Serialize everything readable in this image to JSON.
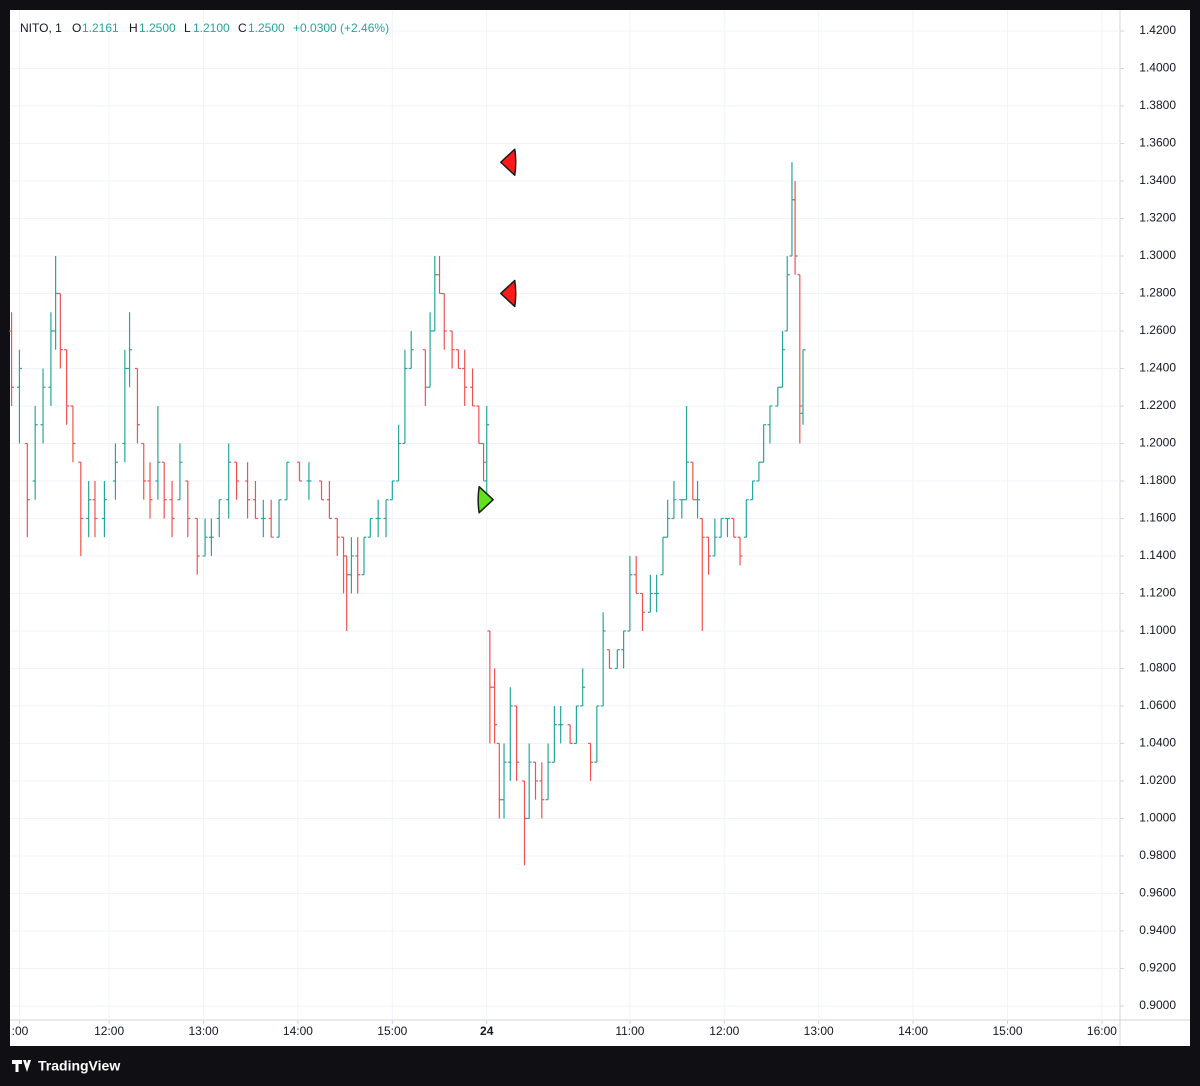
{
  "chart_data": {
    "type": "ohlc",
    "legend": {
      "symbol": "NITO, 1",
      "o_label": "O",
      "o": "1.2161",
      "h_label": "H",
      "h": "1.2500",
      "l_label": "L",
      "l": "1.2100",
      "c_label": "C",
      "c": "1.2500",
      "change": "+0.0300 (+2.46%)"
    },
    "brand": "TradingView",
    "up_color": "#26a69a",
    "down_color": "#ef5350",
    "x": [
      1,
      6,
      11,
      16,
      21,
      26,
      29,
      32,
      36,
      40,
      45,
      50,
      54,
      60,
      67,
      73,
      76,
      81,
      85,
      89,
      94,
      98,
      103,
      108,
      113,
      119,
      124,
      128,
      133,
      139,
      144,
      151,
      156,
      161,
      166,
      171,
      176,
      184,
      190,
      198,
      203,
      208,
      212,
      214,
      217,
      221,
      225,
      229,
      234,
      239,
      243,
      247,
      251,
      255,
      264,
      267,
      270,
      273,
      276,
      281,
      285,
      289,
      294,
      298,
      301,
      303,
      305,
      308,
      311,
      314,
      318,
      322,
      327,
      330,
      334,
      338,
      342,
      346,
      350,
      356,
      360,
      364,
      369,
      373,
      377,
      381,
      386,
      390,
      394,
      398,
      402,
      407,
      411,
      415,
      418,
      422,
      427,
      430,
      434,
      437,
      440,
      444,
      448,
      452,
      456,
      460,
      464,
      468,
      472,
      476,
      479,
      483,
      488,
      491,
      494,
      497,
      499,
      502,
      504
    ],
    "open": [
      1.26,
      1.23,
      1.2,
      1.18,
      1.21,
      1.23,
      1.26,
      1.28,
      1.25,
      1.22,
      1.19,
      1.16,
      1.17,
      1.16,
      1.18,
      1.2,
      1.24,
      1.24,
      1.2,
      1.18,
      1.18,
      1.19,
      1.17,
      1.17,
      1.18,
      1.16,
      1.14,
      1.15,
      1.16,
      1.17,
      1.19,
      1.18,
      1.17,
      1.16,
      1.16,
      1.15,
      1.17,
      1.19,
      1.18,
      1.18,
      1.17,
      1.16,
      1.15,
      1.14,
      1.13,
      1.14,
      1.13,
      1.15,
      1.16,
      1.16,
      1.17,
      1.18,
      1.2,
      1.24,
      1.25,
      1.23,
      1.26,
      1.29,
      1.28,
      1.26,
      1.25,
      1.24,
      1.23,
      1.22,
      1.2,
      1.18,
      1.1,
      1.07,
      1.04,
      1.01,
      1.03,
      1.06,
      1.02,
      1.0,
      1.03,
      1.02,
      1.01,
      1.03,
      1.05,
      1.05,
      1.04,
      1.06,
      1.04,
      1.03,
      1.06,
      1.09,
      1.08,
      1.09,
      1.1,
      1.13,
      1.12,
      1.11,
      1.12,
      1.13,
      1.15,
      1.16,
      1.17,
      1.17,
      1.19,
      1.17,
      1.16,
      1.15,
      1.14,
      1.15,
      1.16,
      1.16,
      1.15,
      1.15,
      1.17,
      1.18,
      1.19,
      1.21,
      1.22,
      1.23,
      1.26,
      1.3,
      1.33,
      1.29,
      1.2161
    ],
    "high": [
      1.27,
      1.25,
      1.2,
      1.22,
      1.24,
      1.27,
      1.3,
      1.28,
      1.25,
      1.22,
      1.19,
      1.18,
      1.18,
      1.18,
      1.2,
      1.25,
      1.27,
      1.24,
      1.2,
      1.19,
      1.22,
      1.19,
      1.18,
      1.2,
      1.18,
      1.16,
      1.16,
      1.16,
      1.17,
      1.2,
      1.19,
      1.19,
      1.18,
      1.17,
      1.17,
      1.17,
      1.19,
      1.19,
      1.19,
      1.18,
      1.18,
      1.16,
      1.15,
      1.14,
      1.15,
      1.15,
      1.15,
      1.16,
      1.17,
      1.17,
      1.18,
      1.21,
      1.25,
      1.26,
      1.25,
      1.27,
      1.3,
      1.3,
      1.28,
      1.26,
      1.25,
      1.25,
      1.24,
      1.22,
      1.2,
      1.22,
      1.1,
      1.08,
      1.04,
      1.04,
      1.07,
      1.06,
      1.02,
      1.04,
      1.03,
      1.03,
      1.04,
      1.06,
      1.06,
      1.05,
      1.06,
      1.08,
      1.04,
      1.06,
      1.11,
      1.09,
      1.09,
      1.1,
      1.14,
      1.14,
      1.12,
      1.13,
      1.13,
      1.15,
      1.17,
      1.18,
      1.17,
      1.22,
      1.19,
      1.18,
      1.16,
      1.15,
      1.16,
      1.16,
      1.16,
      1.16,
      1.15,
      1.17,
      1.18,
      1.19,
      1.21,
      1.22,
      1.23,
      1.26,
      1.3,
      1.35,
      1.34,
      1.29,
      1.25
    ],
    "low": [
      1.22,
      1.2,
      1.15,
      1.17,
      1.2,
      1.22,
      1.25,
      1.24,
      1.21,
      1.19,
      1.14,
      1.15,
      1.15,
      1.15,
      1.17,
      1.19,
      1.23,
      1.2,
      1.17,
      1.16,
      1.17,
      1.16,
      1.15,
      1.17,
      1.15,
      1.13,
      1.14,
      1.14,
      1.15,
      1.16,
      1.17,
      1.16,
      1.16,
      1.15,
      1.15,
      1.15,
      1.17,
      1.18,
      1.17,
      1.17,
      1.16,
      1.14,
      1.12,
      1.1,
      1.12,
      1.12,
      1.13,
      1.15,
      1.15,
      1.15,
      1.17,
      1.18,
      1.2,
      1.24,
      1.22,
      1.23,
      1.26,
      1.28,
      1.25,
      1.24,
      1.24,
      1.22,
      1.22,
      1.2,
      1.18,
      1.17,
      1.04,
      1.04,
      1.0,
      1.0,
      1.02,
      1.02,
      0.975,
      1.0,
      1.01,
      1.0,
      1.01,
      1.03,
      1.04,
      1.04,
      1.04,
      1.06,
      1.02,
      1.03,
      1.06,
      1.08,
      1.08,
      1.08,
      1.1,
      1.12,
      1.1,
      1.11,
      1.11,
      1.13,
      1.15,
      1.16,
      1.16,
      1.17,
      1.17,
      1.16,
      1.1,
      1.13,
      1.14,
      1.15,
      1.15,
      1.15,
      1.135,
      1.15,
      1.17,
      1.18,
      1.19,
      1.2,
      1.22,
      1.23,
      1.26,
      1.3,
      1.29,
      1.2,
      1.21
    ],
    "close": [
      1.23,
      1.24,
      1.17,
      1.21,
      1.23,
      1.26,
      1.28,
      1.25,
      1.22,
      1.2,
      1.16,
      1.17,
      1.16,
      1.17,
      1.19,
      1.24,
      1.25,
      1.21,
      1.18,
      1.17,
      1.19,
      1.17,
      1.16,
      1.19,
      1.16,
      1.14,
      1.15,
      1.15,
      1.17,
      1.19,
      1.18,
      1.17,
      1.16,
      1.16,
      1.15,
      1.17,
      1.19,
      1.18,
      1.18,
      1.17,
      1.16,
      1.15,
      1.14,
      1.13,
      1.14,
      1.13,
      1.15,
      1.16,
      1.16,
      1.17,
      1.18,
      1.2,
      1.24,
      1.25,
      1.23,
      1.26,
      1.29,
      1.28,
      1.26,
      1.25,
      1.24,
      1.23,
      1.22,
      1.2,
      1.19,
      1.21,
      1.07,
      1.05,
      1.01,
      1.03,
      1.06,
      1.03,
      1.0,
      1.03,
      1.02,
      1.01,
      1.03,
      1.05,
      1.05,
      1.04,
      1.06,
      1.07,
      1.03,
      1.06,
      1.1,
      1.08,
      1.09,
      1.1,
      1.13,
      1.12,
      1.11,
      1.12,
      1.12,
      1.15,
      1.16,
      1.17,
      1.17,
      1.19,
      1.17,
      1.17,
      1.15,
      1.14,
      1.15,
      1.16,
      1.16,
      1.15,
      1.14,
      1.17,
      1.18,
      1.19,
      1.21,
      1.22,
      1.23,
      1.25,
      1.29,
      1.33,
      1.3,
      1.22,
      1.25
    ],
    "markers": [
      {
        "x": 317,
        "y": 1.35,
        "color": "#ff1a1a",
        "shape": "left"
      },
      {
        "x": 317,
        "y": 1.28,
        "color": "#ff1a1a",
        "shape": "left"
      },
      {
        "x": 302,
        "y": 1.17,
        "color": "#5fe11b",
        "shape": "right"
      }
    ],
    "xlim": [
      0,
      705.5
    ],
    "xticks": [
      {
        "value": 6,
        "label": ":00"
      },
      {
        "value": 63,
        "label": "12:00"
      },
      {
        "value": 123,
        "label": "13:00"
      },
      {
        "value": 183,
        "label": "14:00"
      },
      {
        "value": 243,
        "label": "15:00"
      },
      {
        "value": 303,
        "label": "24"
      },
      {
        "value": 394,
        "label": "11:00"
      },
      {
        "value": 454,
        "label": "12:00"
      },
      {
        "value": 514,
        "label": "13:00"
      },
      {
        "value": 574,
        "label": "14:00"
      },
      {
        "value": 634,
        "label": "15:00"
      },
      {
        "value": 694,
        "label": "16:00"
      }
    ],
    "ylim": [
      0.8925,
      1.4312
    ],
    "yticks": [
      {
        "value": 1.42,
        "label": "1.4200"
      },
      {
        "value": 1.4,
        "label": "1.4000"
      },
      {
        "value": 1.38,
        "label": "1.3800"
      },
      {
        "value": 1.36,
        "label": "1.3600"
      },
      {
        "value": 1.34,
        "label": "1.3400"
      },
      {
        "value": 1.32,
        "label": "1.3200"
      },
      {
        "value": 1.3,
        "label": "1.3000"
      },
      {
        "value": 1.28,
        "label": "1.2800"
      },
      {
        "value": 1.26,
        "label": "1.2600"
      },
      {
        "value": 1.24,
        "label": "1.2400"
      },
      {
        "value": 1.22,
        "label": "1.2200"
      },
      {
        "value": 1.2,
        "label": "1.2000"
      },
      {
        "value": 1.18,
        "label": "1.1800"
      },
      {
        "value": 1.16,
        "label": "1.1600"
      },
      {
        "value": 1.14,
        "label": "1.1400"
      },
      {
        "value": 1.12,
        "label": "1.1200"
      },
      {
        "value": 1.1,
        "label": "1.1000"
      },
      {
        "value": 1.08,
        "label": "1.0800"
      },
      {
        "value": 1.06,
        "label": "1.0600"
      },
      {
        "value": 1.04,
        "label": "1.0400"
      },
      {
        "value": 1.02,
        "label": "1.0200"
      },
      {
        "value": 1.0,
        "label": "1.0000"
      },
      {
        "value": 0.98,
        "label": "0.9800"
      },
      {
        "value": 0.96,
        "label": "0.9600"
      },
      {
        "value": 0.94,
        "label": "0.9400"
      },
      {
        "value": 0.92,
        "label": "0.9200"
      },
      {
        "value": 0.9,
        "label": "0.9000"
      }
    ],
    "grid": true
  }
}
